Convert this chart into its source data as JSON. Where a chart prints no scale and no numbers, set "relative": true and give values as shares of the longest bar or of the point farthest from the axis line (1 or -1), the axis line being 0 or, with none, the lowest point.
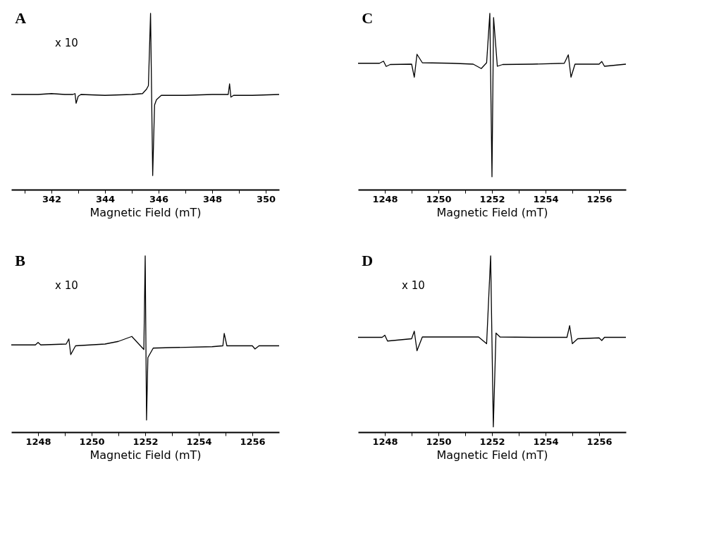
{
  "chart_data": [
    {
      "type": "line",
      "title": "A",
      "xlabel": "Magnetic Field (mT)",
      "relative": true,
      "annotations": [
        "x 10"
      ],
      "xlim": [
        340.5,
        350.5
      ],
      "xticks": [
        {
          "value": 341,
          "label": null
        },
        342,
        {
          "value": 343,
          "label": null
        },
        344,
        {
          "value": 345,
          "label": null
        },
        346,
        {
          "value": 347,
          "label": null
        },
        348,
        {
          "value": 349,
          "label": null
        },
        350
      ],
      "series": [
        {
          "color": "#000000",
          "x": [
            340.5,
            341.0,
            341.5,
            342.0,
            342.5,
            342.8,
            342.88,
            342.92,
            343.0,
            343.1,
            344.0,
            345.0,
            345.4,
            345.55,
            345.62,
            345.7,
            345.78,
            345.85,
            345.92,
            346.1,
            347.0,
            348.0,
            348.6,
            348.65,
            348.7,
            348.8,
            349.5,
            350.5
          ],
          "values": [
            0.54,
            0.54,
            0.54,
            0.545,
            0.54,
            0.54,
            0.545,
            0.49,
            0.53,
            0.54,
            0.535,
            0.54,
            0.545,
            0.57,
            0.59,
            1.0,
            0.08,
            0.48,
            0.51,
            0.535,
            0.535,
            0.54,
            0.54,
            0.6,
            0.525,
            0.535,
            0.535,
            0.54
          ]
        }
      ]
    },
    {
      "type": "line",
      "title": "C",
      "xlabel": "Magnetic Field (mT)",
      "relative": true,
      "xlim": [
        1247,
        1257
      ],
      "xticks": [
        1248,
        {
          "value": 1249,
          "label": null
        },
        1250,
        {
          "value": 1251,
          "label": null
        },
        1252,
        {
          "value": 1253,
          "label": null
        },
        1254,
        {
          "value": 1255,
          "label": null
        },
        1256
      ],
      "series": [
        {
          "color": "#000000",
          "x": [
            1247.0,
            1247.8,
            1247.95,
            1248.05,
            1248.2,
            1249.0,
            1249.1,
            1249.2,
            1249.4,
            1250.5,
            1251.3,
            1251.6,
            1251.8,
            1251.92,
            1252.0,
            1252.06,
            1252.2,
            1252.4,
            1253.5,
            1254.7,
            1254.85,
            1254.95,
            1255.1,
            1256.0,
            1256.1,
            1256.2,
            1257.0
          ],
          "values": [
            0.717,
            0.717,
            0.729,
            0.699,
            0.71,
            0.712,
            0.638,
            0.768,
            0.72,
            0.717,
            0.712,
            0.687,
            0.72,
            1.0,
            0.073,
            0.976,
            0.7,
            0.71,
            0.712,
            0.717,
            0.765,
            0.638,
            0.712,
            0.712,
            0.727,
            0.7,
            0.712
          ]
        }
      ]
    },
    {
      "type": "line",
      "title": "B",
      "xlabel": "Magnetic Field (mT)",
      "relative": true,
      "annotations": [
        "x 10"
      ],
      "xlim": [
        1247,
        1257
      ],
      "xticks": [
        1248,
        {
          "value": 1249,
          "label": null
        },
        1250,
        {
          "value": 1251,
          "label": null
        },
        1252,
        {
          "value": 1253,
          "label": null
        },
        1254,
        {
          "value": 1255,
          "label": null
        },
        1256
      ],
      "series": [
        {
          "color": "#000000",
          "x": [
            1247.0,
            1247.9,
            1248.0,
            1248.1,
            1249.05,
            1249.15,
            1249.22,
            1249.4,
            1250.5,
            1251.0,
            1251.5,
            1251.95,
            1252.0,
            1252.05,
            1252.1,
            1252.3,
            1253.0,
            1254.5,
            1254.9,
            1254.95,
            1255.05,
            1256.0,
            1256.1,
            1256.25,
            1257.0
          ],
          "values": [
            0.495,
            0.495,
            0.509,
            0.495,
            0.5,
            0.529,
            0.44,
            0.49,
            0.5,
            0.515,
            0.543,
            0.469,
            1.0,
            0.069,
            0.423,
            0.477,
            0.48,
            0.485,
            0.49,
            0.56,
            0.49,
            0.49,
            0.472,
            0.49,
            0.49
          ]
        }
      ]
    },
    {
      "type": "line",
      "title": "D",
      "xlabel": "Magnetic Field (mT)",
      "relative": true,
      "annotations": [
        "x 10"
      ],
      "xlim": [
        1247,
        1257
      ],
      "xticks": [
        1248,
        {
          "value": 1249,
          "label": null
        },
        1250,
        {
          "value": 1251,
          "label": null
        },
        1252,
        {
          "value": 1253,
          "label": null
        },
        1254,
        {
          "value": 1255,
          "label": null
        },
        1256
      ],
      "series": [
        {
          "color": "#000000",
          "x": [
            1247.0,
            1247.9,
            1248.0,
            1248.1,
            1249.0,
            1249.1,
            1249.2,
            1249.4,
            1250.5,
            1251.5,
            1251.8,
            1251.95,
            1252.05,
            1252.15,
            1252.3,
            1253.5,
            1254.8,
            1254.9,
            1255.0,
            1255.2,
            1256.0,
            1256.1,
            1256.2,
            1257.0
          ],
          "values": [
            0.538,
            0.538,
            0.55,
            0.517,
            0.53,
            0.573,
            0.462,
            0.54,
            0.54,
            0.54,
            0.502,
            1.0,
            0.03,
            0.562,
            0.54,
            0.538,
            0.538,
            0.604,
            0.502,
            0.53,
            0.535,
            0.52,
            0.538,
            0.538
          ]
        }
      ]
    }
  ]
}
